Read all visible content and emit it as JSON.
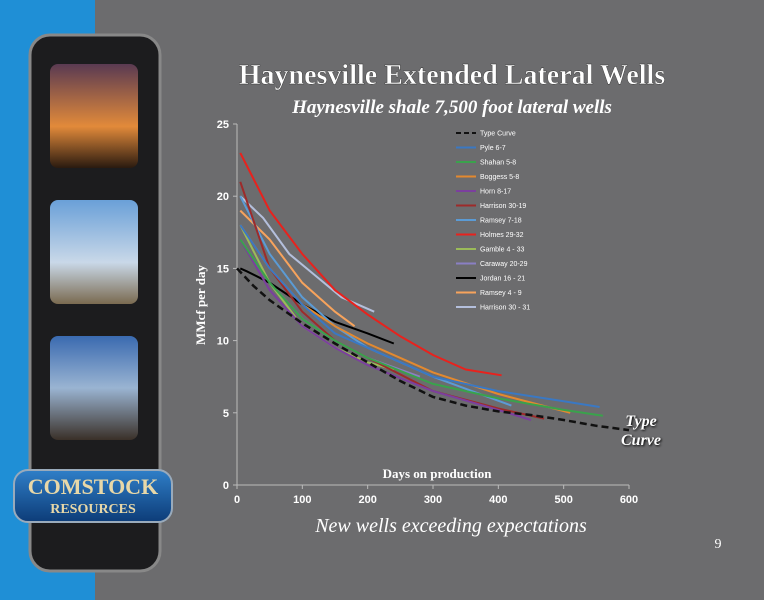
{
  "slide": {
    "title": "Haynesville Extended Lateral Wells",
    "footer": "New wells exceeding expectations",
    "page_number": "9",
    "logo": {
      "line1": "COMSTOCK",
      "line2": "RESOURCES"
    }
  },
  "chart_data": {
    "type": "line",
    "title": "Haynesville shale 7,500 foot lateral wells",
    "x_label": "Days on production",
    "y_label": "MMcf per day",
    "annotation": "Type Curve",
    "xlim": [
      0,
      600
    ],
    "xticks": [
      0,
      100,
      200,
      300,
      400,
      500,
      600
    ],
    "ylim": [
      0,
      25
    ],
    "yticks": [
      0,
      5,
      10,
      15,
      20,
      25
    ],
    "grid": false,
    "series": [
      {
        "name": "Type Curve",
        "color": "#111111",
        "dashed": true,
        "x": [
          0,
          25,
          50,
          100,
          150,
          200,
          250,
          300,
          350,
          400,
          450,
          500,
          550,
          600
        ],
        "values": [
          15,
          13.8,
          12.8,
          11.2,
          9.8,
          8.5,
          7.2,
          6.1,
          5.5,
          5.1,
          4.85,
          4.5,
          4.1,
          3.8
        ]
      },
      {
        "name": "Pyle 6-7",
        "color": "#3a78c3",
        "x": [
          5,
          50,
          100,
          150,
          200,
          300,
          400,
          500,
          555
        ],
        "values": [
          18,
          15,
          12.5,
          10.5,
          9.5,
          7.5,
          6.5,
          5.8,
          5.4
        ]
      },
      {
        "name": "Shahan 5-8",
        "color": "#3aa24c",
        "x": [
          5,
          50,
          100,
          150,
          200,
          300,
          400,
          500,
          560
        ],
        "values": [
          17,
          14,
          11.5,
          10,
          8.8,
          7,
          6,
          5.2,
          4.8
        ]
      },
      {
        "name": "Boggess 5-8",
        "color": "#e3892f",
        "x": [
          5,
          50,
          100,
          150,
          200,
          300,
          400,
          510
        ],
        "values": [
          18,
          15,
          12.5,
          11,
          9.8,
          7.8,
          6.3,
          5
        ]
      },
      {
        "name": "Horn 8-17",
        "color": "#7b3f9e",
        "x": [
          5,
          50,
          100,
          150,
          200,
          300,
          400,
          450
        ],
        "values": [
          17,
          13.5,
          11,
          9.5,
          8.3,
          6.5,
          5.2,
          4.5
        ]
      },
      {
        "name": "Harrison 30-19",
        "color": "#9e2a2a",
        "x": [
          5,
          50,
          100,
          150,
          200,
          300,
          400,
          470
        ],
        "values": [
          21,
          15,
          12,
          10,
          8.8,
          6.5,
          5.3,
          4.6
        ]
      },
      {
        "name": "Ramsey 7-18",
        "color": "#5b9bd5",
        "x": [
          5,
          50,
          100,
          150,
          200,
          300,
          420
        ],
        "values": [
          20,
          16,
          13,
          11,
          9.5,
          7.5,
          5.5
        ]
      },
      {
        "name": "Holmes 29-32",
        "color": "#e8221d",
        "x": [
          5,
          50,
          100,
          150,
          200,
          250,
          300,
          350,
          405
        ],
        "values": [
          23,
          19,
          16,
          13.5,
          11.8,
          10.3,
          9,
          8,
          7.6
        ]
      },
      {
        "name": "Gamble 4 - 33",
        "color": "#9bbb59",
        "x": [
          5,
          50,
          100,
          150,
          200,
          240
        ],
        "values": [
          18,
          14,
          11,
          9.5,
          8.5,
          8
        ]
      },
      {
        "name": "Caraway 20-29",
        "color": "#8a7fc4",
        "x": [
          5,
          50,
          100,
          150,
          200,
          280
        ],
        "values": [
          17,
          14,
          11.5,
          10,
          8.8,
          7.5
        ]
      },
      {
        "name": "Jordan 16 - 21",
        "color": "#000000",
        "x": [
          5,
          15,
          50,
          100,
          150,
          200,
          240
        ],
        "values": [
          15,
          14.8,
          14,
          12.5,
          11.3,
          10.5,
          9.8
        ]
      },
      {
        "name": "Ramsey 4 - 9",
        "color": "#f7a35c",
        "x": [
          5,
          50,
          100,
          150,
          180
        ],
        "values": [
          19,
          17,
          14,
          12,
          11
        ]
      },
      {
        "name": "Harrison 30 - 31",
        "color": "#b4bfdc",
        "x": [
          5,
          40,
          80,
          120,
          160,
          210
        ],
        "values": [
          20,
          18.5,
          16,
          14.5,
          13,
          12
        ]
      }
    ]
  }
}
